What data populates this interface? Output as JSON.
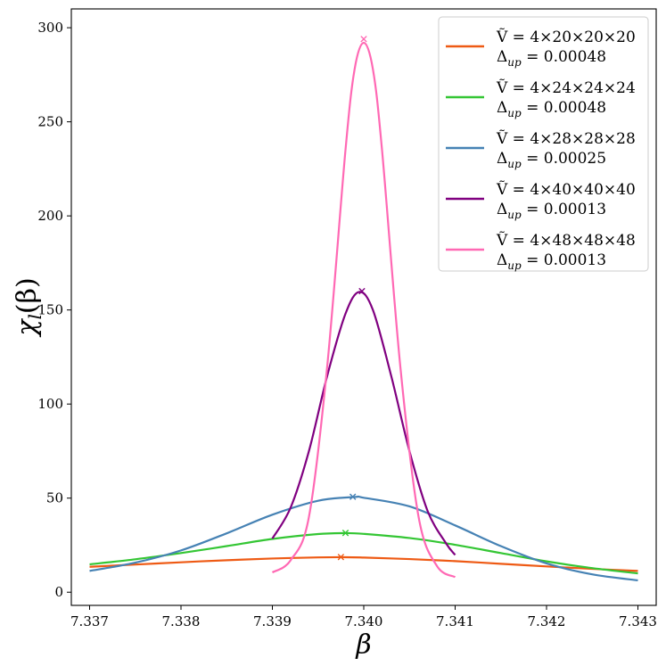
{
  "chart_data": {
    "type": "line",
    "xlabel": "β",
    "ylabel_main": "χ",
    "ylabel_sub": "l",
    "ylabel_rest": "(β)",
    "xlim": [
      7.3368,
      7.3432
    ],
    "ylim": [
      -7,
      310
    ],
    "x_ticks": [
      7.337,
      7.338,
      7.339,
      7.34,
      7.341,
      7.342,
      7.343
    ],
    "x_tick_labels": [
      "7.337",
      "7.338",
      "7.339",
      "7.340",
      "7.341",
      "7.342",
      "7.343"
    ],
    "y_ticks": [
      0,
      50,
      100,
      150,
      200,
      250,
      300
    ],
    "y_tick_labels": [
      "0",
      "50",
      "100",
      "150",
      "200",
      "250",
      "300"
    ],
    "legend_position": "top-right",
    "series": [
      {
        "legend_line1": "Ṽ = 4×20×20×20",
        "legend_line2_prefix": "Δ",
        "legend_line2_sub": "up",
        "legend_line2_value": " = 0.00048",
        "color": "#ee5a14",
        "x": [
          7.337,
          7.3375,
          7.338,
          7.3385,
          7.339,
          7.3395,
          7.3398,
          7.34,
          7.3405,
          7.341,
          7.3415,
          7.342,
          7.3425,
          7.343
        ],
        "y": [
          13.5,
          14.7,
          15.9,
          17.0,
          17.9,
          18.5,
          18.6,
          18.4,
          17.6,
          16.5,
          15.1,
          13.7,
          12.4,
          11.3
        ],
        "peak": [
          7.33975,
          18.7
        ]
      },
      {
        "legend_line1": "Ṽ = 4×24×24×24",
        "legend_line2_prefix": "Δ",
        "legend_line2_sub": "up",
        "legend_line2_value": " = 0.00048",
        "color": "#34c634",
        "x": [
          7.337,
          7.3375,
          7.338,
          7.3385,
          7.339,
          7.3395,
          7.3398,
          7.34,
          7.3405,
          7.341,
          7.3415,
          7.342,
          7.3425,
          7.343
        ],
        "y": [
          14.8,
          17.5,
          20.8,
          24.5,
          28.3,
          30.9,
          31.4,
          31.0,
          28.8,
          25.2,
          20.8,
          16.4,
          12.8,
          10.0
        ],
        "peak": [
          7.3398,
          31.5
        ]
      },
      {
        "legend_line1": "Ṽ = 4×28×28×28",
        "legend_line2_prefix": "Δ",
        "legend_line2_sub": "up",
        "legend_line2_value": " = 0.00025",
        "color": "#4682b4",
        "x": [
          7.337,
          7.3375,
          7.338,
          7.3385,
          7.339,
          7.3395,
          7.3399,
          7.34,
          7.3405,
          7.341,
          7.3415,
          7.342,
          7.3425,
          7.343
        ],
        "y": [
          11.3,
          15.7,
          22.2,
          31.3,
          41.2,
          48.6,
          50.6,
          50.2,
          45.6,
          35.5,
          24.5,
          15.3,
          9.5,
          6.3
        ],
        "peak": [
          7.33988,
          50.7
        ]
      },
      {
        "legend_line1": "Ṽ = 4×40×40×40",
        "legend_line2_prefix": "Δ",
        "legend_line2_sub": "up",
        "legend_line2_value": " = 0.00013",
        "color": "#800080",
        "x": [
          7.339,
          7.3392,
          7.3394,
          7.3396,
          7.3398,
          7.33995,
          7.3401,
          7.3403,
          7.3405,
          7.3407,
          7.3409,
          7.341
        ],
        "y": [
          28.5,
          45.0,
          75.0,
          115.0,
          148.0,
          159.6,
          150.0,
          115.0,
          75.0,
          43.0,
          26.0,
          19.8
        ],
        "peak": [
          7.33998,
          160.0
        ]
      },
      {
        "legend_line1": "Ṽ = 4×48×48×48",
        "legend_line2_prefix": "Δ",
        "legend_line2_sub": "up",
        "legend_line2_value": " = 0.00013",
        "color": "#ff69b4",
        "x": [
          7.339,
          7.3392,
          7.3394,
          7.3396,
          7.3398,
          7.3399,
          7.34,
          7.3401,
          7.3402,
          7.3404,
          7.3406,
          7.3408,
          7.341
        ],
        "y": [
          10.5,
          17.0,
          40.0,
          120.0,
          235.0,
          278.0,
          292.0,
          278.0,
          235.0,
          120.0,
          40.0,
          14.0,
          8.0
        ],
        "peak": [
          7.34,
          294.0
        ]
      }
    ]
  }
}
